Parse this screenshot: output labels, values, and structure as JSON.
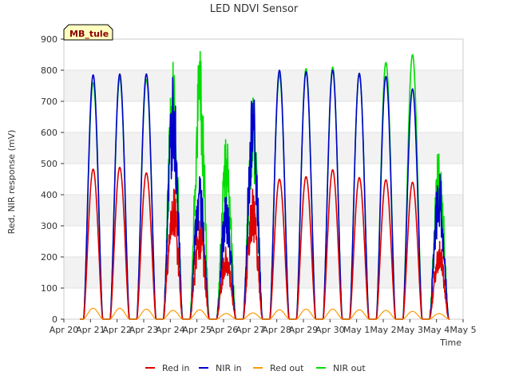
{
  "chart_data": {
    "type": "line",
    "title": "LED NDVI Sensor",
    "xlabel": "Time",
    "ylabel": "Red, NIR response (mV)",
    "tag": "MB_tule",
    "ylim": [
      0,
      900
    ],
    "yticks": [
      0,
      100,
      200,
      300,
      400,
      500,
      600,
      700,
      800,
      900
    ],
    "xlim": [
      0,
      15
    ],
    "xticks": [
      {
        "value": 0,
        "label": "Apr 20"
      },
      {
        "value": 1,
        "label": "Apr 21"
      },
      {
        "value": 2,
        "label": "Apr 22"
      },
      {
        "value": 3,
        "label": "Apr 23"
      },
      {
        "value": 4,
        "label": "Apr 24"
      },
      {
        "value": 5,
        "label": "Apr 25"
      },
      {
        "value": 6,
        "label": "Apr 26"
      },
      {
        "value": 7,
        "label": "Apr 27"
      },
      {
        "value": 8,
        "label": "Apr 28"
      },
      {
        "value": 9,
        "label": "Apr 29"
      },
      {
        "value": 10,
        "label": "Apr 30"
      },
      {
        "value": 11,
        "label": "May 1"
      },
      {
        "value": 12,
        "label": "May 2"
      },
      {
        "value": 13,
        "label": "May 3"
      },
      {
        "value": 14,
        "label": "May 4"
      },
      {
        "value": 15,
        "label": "May 5"
      }
    ],
    "grid": "horizontal bands",
    "legend_position": "bottom",
    "series": [
      {
        "name": "Red in",
        "color": "#dd0000",
        "daily_peak": [
          482,
          488,
          470,
          448,
          320,
          240,
          420,
          450,
          458,
          480,
          455,
          448,
          440,
          255
        ]
      },
      {
        "name": "NIR in",
        "color": "#0000cc",
        "daily_peak": [
          785,
          788,
          788,
          785,
          480,
          400,
          770,
          800,
          795,
          800,
          790,
          780,
          740,
          480
        ]
      },
      {
        "name": "Red out",
        "color": "#ff9900",
        "daily_peak": [
          35,
          35,
          32,
          28,
          30,
          18,
          20,
          30,
          32,
          32,
          30,
          28,
          25,
          18
        ]
      },
      {
        "name": "NIR out",
        "color": "#00dd00",
        "daily_peak": [
          760,
          775,
          770,
          830,
          890,
          585,
          730,
          785,
          805,
          810,
          790,
          825,
          850,
          560
        ]
      }
    ]
  }
}
